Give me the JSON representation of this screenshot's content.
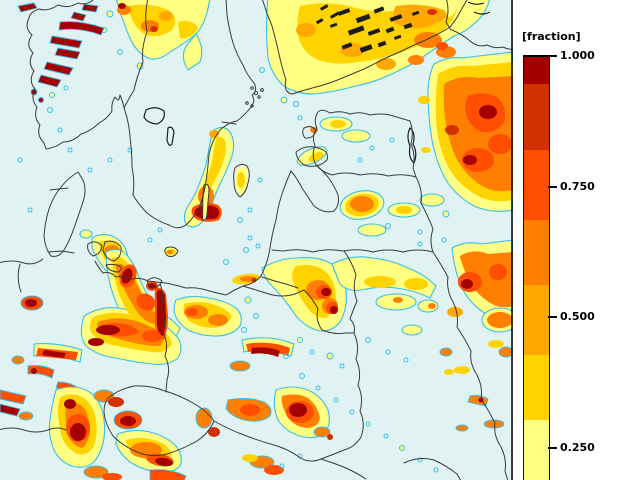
{
  "figure": {
    "sea_color": "#E0F3F2",
    "border_color": "#3B3B3B",
    "contour_color": "#36BEF0",
    "panel_background": "#FFFFFF"
  },
  "legend": {
    "title": "[fraction]",
    "ticks": [
      {
        "label": "1.000",
        "value": 1.0
      },
      {
        "label": "0.750",
        "value": 0.75
      },
      {
        "label": "0.500",
        "value": 0.5
      },
      {
        "label": "0.250",
        "value": 0.25
      }
    ],
    "colors": [
      {
        "key": "dr",
        "name": "dark-red",
        "hex": "#A40000"
      },
      {
        "key": "rd",
        "name": "red",
        "hex": "#D33000"
      },
      {
        "key": "vm",
        "name": "vermilion",
        "hex": "#FF4E00"
      },
      {
        "key": "or",
        "name": "orange",
        "hex": "#FF8000"
      },
      {
        "key": "am",
        "name": "amber",
        "hex": "#FFA800"
      },
      {
        "key": "gd",
        "name": "gold",
        "hex": "#FFD300"
      },
      {
        "key": "ly",
        "name": "light-yellow",
        "hex": "#FFFF82"
      }
    ]
  }
}
